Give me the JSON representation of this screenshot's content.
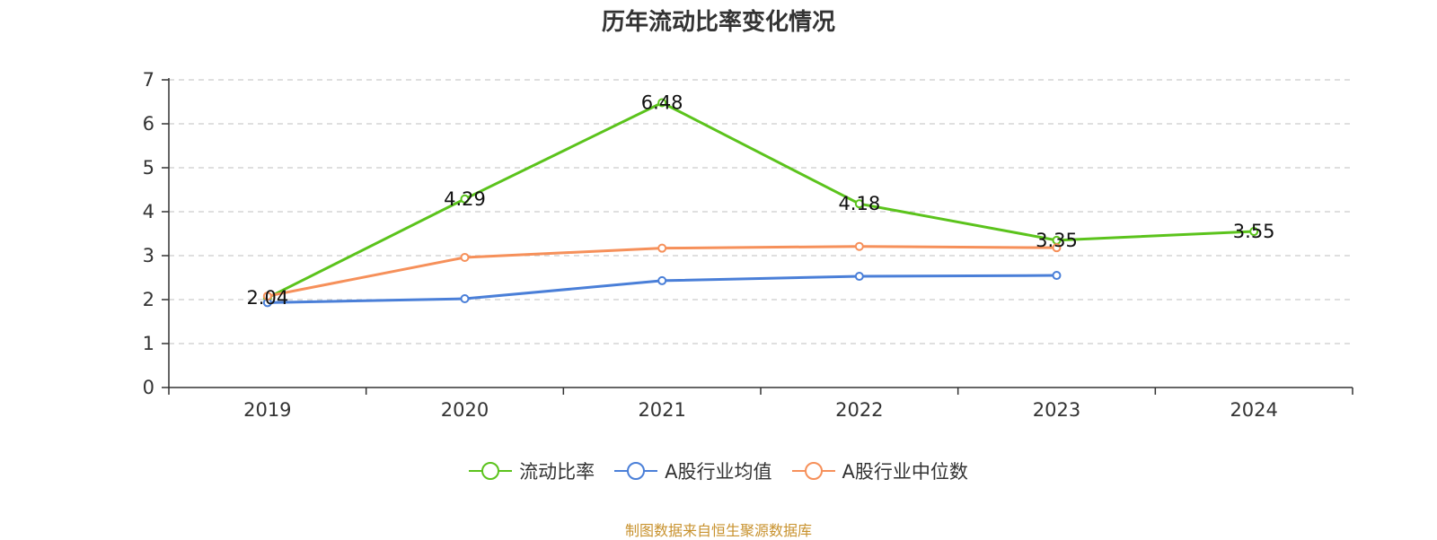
{
  "source_note": "制图数据来自恒生聚源数据库",
  "chart_data": {
    "type": "line",
    "title": "历年流动比率变化情况",
    "xlabel": "",
    "ylabel": "",
    "categories": [
      "2019",
      "2020",
      "2021",
      "2022",
      "2023",
      "2024"
    ],
    "ylim": [
      0,
      7
    ],
    "yticks": [
      0,
      1,
      2,
      3,
      4,
      5,
      6,
      7
    ],
    "grid": true,
    "legend_position": "bottom",
    "series": [
      {
        "name": "流动比率",
        "color": "#5bc31c",
        "values": [
          2.04,
          4.29,
          6.48,
          4.18,
          3.35,
          3.55
        ],
        "show_labels": true
      },
      {
        "name": "A股行业均值",
        "color": "#4a7fd8",
        "values": [
          1.93,
          2.02,
          2.43,
          2.53,
          2.55,
          null
        ],
        "show_labels": false
      },
      {
        "name": "A股行业中位数",
        "color": "#f6905a",
        "values": [
          2.08,
          2.96,
          3.17,
          3.21,
          3.18,
          null
        ],
        "show_labels": false
      }
    ]
  }
}
